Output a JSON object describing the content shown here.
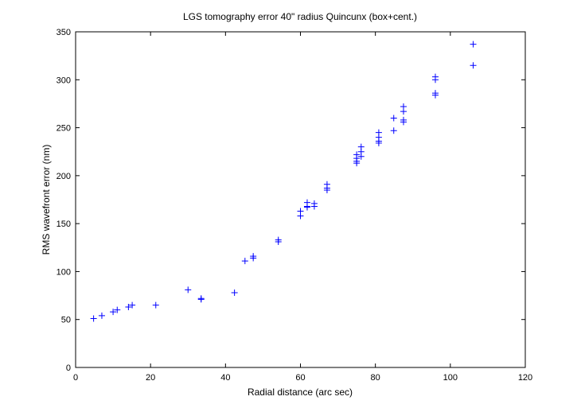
{
  "chart_data": {
    "type": "scatter",
    "title": "LGS tomography error 40\" radius Quincunx (box+cent.)",
    "xlabel": "Radial distance (arc sec)",
    "ylabel": "RMS wavefront error (nm)",
    "xlim": [
      0,
      120
    ],
    "ylim": [
      0,
      350
    ],
    "xticks": [
      0,
      20,
      40,
      60,
      80,
      100,
      120
    ],
    "yticks": [
      0,
      50,
      100,
      150,
      200,
      250,
      300,
      350
    ],
    "grid": false,
    "marker_style": "plus",
    "series": [
      {
        "color": "#0000ff",
        "points": [
          [
            4.8,
            51
          ],
          [
            7.0,
            54
          ],
          [
            10.0,
            58
          ],
          [
            11.1,
            60
          ],
          [
            14.1,
            63
          ],
          [
            15.1,
            65
          ],
          [
            21.4,
            65
          ],
          [
            30.0,
            81
          ],
          [
            33.5,
            72
          ],
          [
            33.5,
            71
          ],
          [
            42.4,
            78
          ],
          [
            45.2,
            111
          ],
          [
            47.4,
            114
          ],
          [
            47.4,
            116
          ],
          [
            54.1,
            131
          ],
          [
            54.1,
            133
          ],
          [
            60.0,
            158
          ],
          [
            60.0,
            163
          ],
          [
            61.8,
            167
          ],
          [
            61.8,
            168
          ],
          [
            61.8,
            172
          ],
          [
            63.7,
            168
          ],
          [
            63.7,
            171
          ],
          [
            67.1,
            185
          ],
          [
            67.1,
            187
          ],
          [
            67.1,
            191
          ],
          [
            75.0,
            213
          ],
          [
            75.0,
            215
          ],
          [
            75.0,
            218
          ],
          [
            75.0,
            222
          ],
          [
            76.2,
            220
          ],
          [
            76.2,
            225
          ],
          [
            76.2,
            230
          ],
          [
            80.9,
            234
          ],
          [
            80.9,
            236
          ],
          [
            80.9,
            240
          ],
          [
            80.9,
            245
          ],
          [
            84.9,
            247
          ],
          [
            84.9,
            260
          ],
          [
            87.5,
            256
          ],
          [
            87.5,
            258
          ],
          [
            87.5,
            267
          ],
          [
            87.5,
            272
          ],
          [
            96.0,
            284
          ],
          [
            96.0,
            286
          ],
          [
            96.0,
            300
          ],
          [
            96.0,
            303
          ],
          [
            106.1,
            315
          ],
          [
            106.1,
            337
          ]
        ]
      }
    ]
  }
}
